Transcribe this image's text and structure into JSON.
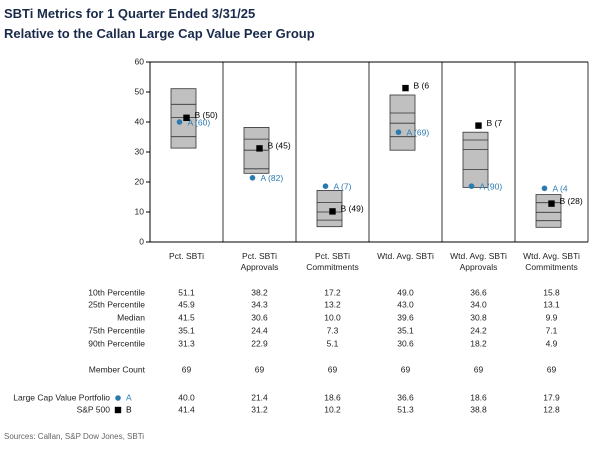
{
  "chart_data": {
    "type": "box",
    "title": "SBTi Metrics for 1 Quarter Ended 3/31/25",
    "subtitle": "Relative to the Callan Large Cap Value Peer Group",
    "categories": [
      "Pct. SBTi",
      "Pct. SBTi\nApprovals",
      "Pct. SBTi\nCommitments",
      "Wtd. Avg. SBTi",
      "Wtd. Avg. SBTi\nApprovals",
      "Wtd. Avg. SBTi\nCommitments"
    ],
    "ylim": [
      0,
      60
    ],
    "yticks": [
      0,
      10,
      20,
      30,
      40,
      50,
      60
    ],
    "box_color": "#c0c0c0",
    "stats": [
      {
        "name": "10th Percentile",
        "values": [
          51.1,
          38.2,
          17.2,
          49.0,
          36.6,
          15.8
        ],
        "value_labels": [
          "51.1",
          "38.2",
          "17.2",
          "49.0",
          "36.6",
          "15.8"
        ]
      },
      {
        "name": "25th Percentile",
        "values": [
          45.9,
          34.3,
          13.2,
          43.0,
          34.0,
          13.1
        ],
        "value_labels": [
          "45.9",
          "34.3",
          "13.2",
          "43.0",
          "34.0",
          "13.1"
        ]
      },
      {
        "name": "Median",
        "values": [
          41.5,
          30.6,
          10.0,
          39.6,
          30.8,
          9.9
        ],
        "value_labels": [
          "41.5",
          "30.6",
          "10.0",
          "39.6",
          "30.8",
          "9.9"
        ]
      },
      {
        "name": "75th Percentile",
        "values": [
          35.1,
          24.4,
          7.3,
          35.1,
          24.2,
          7.1
        ],
        "value_labels": [
          "35.1",
          "24.4",
          "7.3",
          "35.1",
          "24.2",
          "7.1"
        ]
      },
      {
        "name": "90th Percentile",
        "values": [
          31.3,
          22.9,
          5.1,
          30.6,
          18.2,
          4.9
        ],
        "value_labels": [
          "31.3",
          "22.9",
          "5.1",
          "30.6",
          "18.2",
          "4.9"
        ]
      }
    ],
    "member_count": {
      "name": "Member Count",
      "values": [
        69,
        69,
        69,
        69,
        69,
        69
      ]
    },
    "series": [
      {
        "name": "Large Cap Value Portfolio",
        "marker": "A",
        "color": "#2a7ab0",
        "shape": "circle",
        "values": [
          40.0,
          21.4,
          18.6,
          36.6,
          18.6,
          17.9
        ],
        "value_labels": [
          "40.0",
          "21.4",
          "18.6",
          "36.6",
          "18.6",
          "17.9"
        ],
        "point_labels": [
          "A (60)",
          "A (82)",
          "A (7)",
          "A (69)",
          "A (90)",
          "A (4"
        ]
      },
      {
        "name": "S&P 500",
        "marker": "B",
        "color": "#000000",
        "shape": "square",
        "values": [
          41.4,
          31.2,
          10.2,
          51.3,
          38.8,
          12.8
        ],
        "value_labels": [
          "41.4",
          "31.2",
          "10.2",
          "51.3",
          "38.8",
          "12.8"
        ],
        "point_labels": [
          "B (50)",
          "B (45)",
          "B (49)",
          "B (6",
          "B (7",
          "B (28)"
        ]
      }
    ],
    "source": "Sources: Callan, S&P Dow Jones, SBTi"
  }
}
